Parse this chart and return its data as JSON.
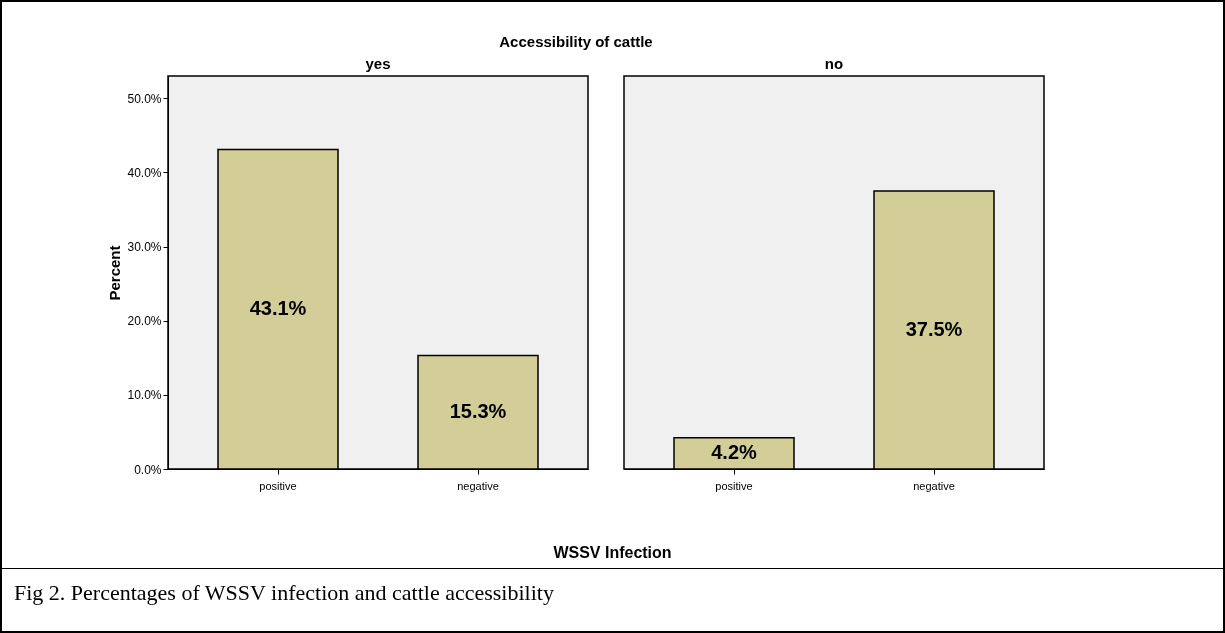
{
  "chart_data": [
    {
      "type": "bar",
      "title": "Accessibility of cattle",
      "subtitle": "yes",
      "xlabel": "WSSV Infection",
      "ylabel": "Percent",
      "annotations": [
        "Fig 2. Percentages of WSSV infection and cattle accessibility"
      ],
      "categories": [
        "positive",
        "negative"
      ],
      "series": [
        {
          "color": "#d3ce98",
          "values": [
            43.1,
            15.3
          ],
          "value_labels": [
            "43.1%",
            "15.3%"
          ]
        }
      ],
      "ylim": [
        0,
        53
      ],
      "yticks": [
        {
          "value": 0,
          "label": "0.0%"
        },
        {
          "value": 10,
          "label": "10.0%"
        },
        {
          "value": 20,
          "label": "20.0%"
        },
        {
          "value": 30,
          "label": "30.0%"
        },
        {
          "value": 40,
          "label": "40.0%"
        },
        {
          "value": 50,
          "label": "50.0%"
        }
      ],
      "grid": false
    },
    {
      "type": "bar",
      "subtitle": "no",
      "categories": [
        "positive",
        "negative"
      ],
      "series": [
        {
          "color": "#d3ce98",
          "values": [
            4.2,
            37.5
          ],
          "value_labels": [
            "4.2%",
            "37.5%"
          ]
        }
      ],
      "ylim": [
        0,
        53
      ],
      "tick_labels": "x",
      "grid": false
    }
  ]
}
